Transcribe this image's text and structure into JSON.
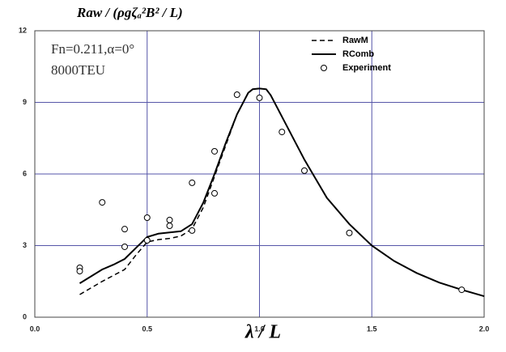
{
  "chart_data": {
    "type": "line",
    "title": "Raw / (ρgζₐ²B² / L)",
    "x_label": "λ / L",
    "annotations": [
      "Fn=0.211,α=0°",
      "8000TEU"
    ],
    "xlim": [
      0,
      2
    ],
    "ylim": [
      0,
      12
    ],
    "xticks": [
      {
        "value": 0,
        "label": "0.0"
      },
      0.5,
      {
        "value": 1,
        "label": "1.0"
      },
      1.5,
      {
        "value": 2,
        "label": "2.0"
      }
    ],
    "yticks": [
      0,
      3,
      6,
      9,
      12
    ],
    "grid": true,
    "legend": "top-right",
    "series": [
      {
        "name": "RawM",
        "color": "#000000",
        "style": "dashed",
        "x": [
          0.2,
          0.3,
          0.35,
          0.4,
          0.45,
          0.5,
          0.55,
          0.6,
          0.65,
          0.7,
          0.75,
          0.8,
          0.85,
          0.9,
          0.95,
          0.97,
          1.0,
          1.03,
          1.05,
          1.1,
          1.2,
          1.3,
          1.4,
          1.5,
          1.6,
          1.7,
          1.8,
          1.9,
          2.0
        ],
        "values": [
          0.95,
          1.5,
          1.75,
          2.0,
          2.6,
          3.15,
          3.25,
          3.3,
          3.4,
          3.7,
          4.6,
          5.9,
          7.2,
          8.5,
          9.4,
          9.55,
          9.58,
          9.55,
          9.3,
          8.4,
          6.6,
          5.0,
          3.9,
          3.0,
          2.35,
          1.85,
          1.45,
          1.15,
          0.88
        ]
      },
      {
        "name": "RComb",
        "color": "#000000",
        "style": "solid",
        "x": [
          0.2,
          0.3,
          0.35,
          0.4,
          0.45,
          0.5,
          0.55,
          0.6,
          0.65,
          0.7,
          0.75,
          0.8,
          0.85,
          0.9,
          0.95,
          0.97,
          1.0,
          1.03,
          1.05,
          1.1,
          1.2,
          1.3,
          1.4,
          1.5,
          1.6,
          1.7,
          1.8,
          1.9,
          2.0
        ],
        "values": [
          1.42,
          2.0,
          2.2,
          2.44,
          2.9,
          3.36,
          3.5,
          3.55,
          3.6,
          3.9,
          4.8,
          6.0,
          7.3,
          8.5,
          9.4,
          9.55,
          9.58,
          9.55,
          9.3,
          8.4,
          6.6,
          5.0,
          3.9,
          3.0,
          2.35,
          1.85,
          1.45,
          1.15,
          0.88
        ]
      },
      {
        "name": "Experiment",
        "color": "#000000",
        "style": "markers",
        "x": [
          0.2,
          0.2,
          0.3,
          0.4,
          0.4,
          0.5,
          0.5,
          0.6,
          0.6,
          0.7,
          0.7,
          0.8,
          0.8,
          0.9,
          1.0,
          1.1,
          1.2,
          1.4,
          1.9
        ],
        "values": [
          2.07,
          1.93,
          4.81,
          3.69,
          2.95,
          4.17,
          3.22,
          4.07,
          3.83,
          5.63,
          3.63,
          6.95,
          5.19,
          9.32,
          9.19,
          7.76,
          6.14,
          3.53,
          1.15
        ]
      }
    ]
  }
}
